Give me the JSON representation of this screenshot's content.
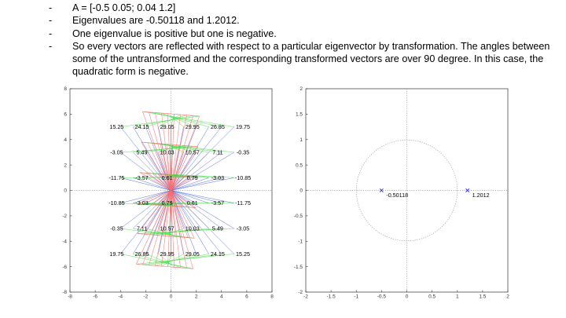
{
  "slide": {
    "bullets": [
      {
        "dash": "-",
        "text": "A = [-0.5 0.05; 0.04 1.2]"
      },
      {
        "dash": "-",
        "text": "Eigenvalues are -0.50118 and 1.2012."
      },
      {
        "dash": "-",
        "text": "One eigenvalue is positive but one is negative."
      },
      {
        "dash": "-",
        "text": "So every vectors are reflected with respect to a particular eigenvector by transformation. The angles between some of the untransformed and the corresponding transformed vectors are over 90 degree. In this case, the quadratic form is negative."
      }
    ]
  },
  "chart_data": [
    {
      "type": "quiver",
      "xlim": [
        -8,
        8
      ],
      "ylim": [
        -8,
        8
      ],
      "xticks": [
        "-8",
        "-6",
        "-4",
        "-2",
        "0",
        "2",
        "4",
        "6",
        "8"
      ],
      "yticks": [
        "8",
        "6",
        "4",
        "2",
        "0",
        "-2",
        "-4",
        "-6",
        "-8"
      ],
      "grid": "dotted axes at 0",
      "colors": {
        "original": "#3b5bdb",
        "transformed": "#ff6b6b",
        "connector": "#44dd44"
      },
      "value_labels": [
        {
          "y": 5,
          "values": [
            "15.25",
            "24.15",
            "29.05",
            "29.95",
            "26.85",
            "19.75"
          ]
        },
        {
          "y": 3,
          "values": [
            "-3.05",
            "5.49",
            "10.03",
            "10.57",
            "7.11",
            "-0.35"
          ]
        },
        {
          "y": 1,
          "values": [
            "-11.75",
            "-3.57",
            "0.61",
            "0.79",
            "-3.03",
            "-10.85"
          ]
        },
        {
          "y": -1,
          "values": [
            "-10.85",
            "-3.03",
            "0.79",
            "0.61",
            "-3.57",
            "-11.75"
          ]
        },
        {
          "y": -3,
          "values": [
            "-0.35",
            "7.11",
            "10.57",
            "10.03",
            "5.49",
            "-3.05"
          ]
        },
        {
          "y": -5,
          "values": [
            "19.75",
            "26.85",
            "29.95",
            "29.05",
            "24.15",
            "15.25"
          ]
        }
      ],
      "label_x": [
        -4.3,
        -2.3,
        -0.3,
        1.7,
        3.7,
        5.7
      ]
    },
    {
      "type": "scatter",
      "xlim": [
        -2,
        2
      ],
      "ylim": [
        -2,
        2
      ],
      "xticks": [
        "-2",
        "-1.5",
        "-1",
        "-0.5",
        "0",
        "0.5",
        "1",
        "1.5",
        "2"
      ],
      "yticks": [
        "2",
        "1.5",
        "1",
        "0.5",
        "0",
        "-0.5",
        "-1",
        "-1.5",
        "-2"
      ],
      "unit_circle": true,
      "points": [
        {
          "x": -0.50118,
          "y": 0,
          "label": "-0.50118"
        },
        {
          "x": 1.2012,
          "y": 0,
          "label": "1.2012"
        }
      ],
      "marker_color": "#2222ff"
    }
  ]
}
